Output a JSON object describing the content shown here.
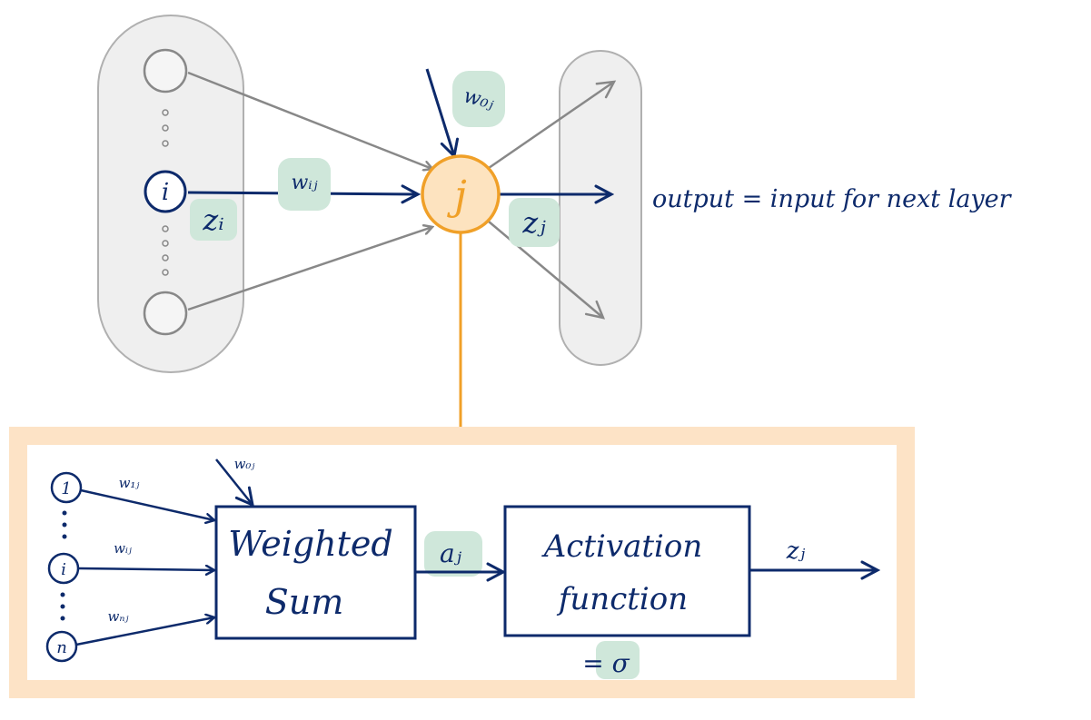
{
  "network": {
    "input_node_label": "i",
    "input_output_label": "zᵢ",
    "weight_ij_label": "wᵢⱼ",
    "bias_weight_label": "w₀ⱼ",
    "neuron_label": "j",
    "neuron_output_label": "zⱼ",
    "output_caption": "output = input for next layer"
  },
  "detail": {
    "inputs": [
      {
        "node_label": "1",
        "weight_label": "w₁ⱼ"
      },
      {
        "node_label": "i",
        "weight_label": "wᵢⱼ"
      },
      {
        "node_label": "n",
        "weight_label": "wₙⱼ"
      }
    ],
    "bias_weight_label": "w₀ⱼ",
    "weighted_sum_line1": "Weighted",
    "weighted_sum_line2": "Sum",
    "activation_input_label": "aⱼ",
    "activation_line1": "Activation",
    "activation_line2": "function",
    "activation_symbol": "= σ",
    "output_label": "zⱼ"
  },
  "colors": {
    "navy": "#0d2a6b",
    "gray": "#888888",
    "orange": "#f0a028",
    "orange_fill": "#fde3bf",
    "panel_border": "#fde3c6",
    "highlight": "#cfe7da",
    "layer_fill": "#efefef"
  }
}
